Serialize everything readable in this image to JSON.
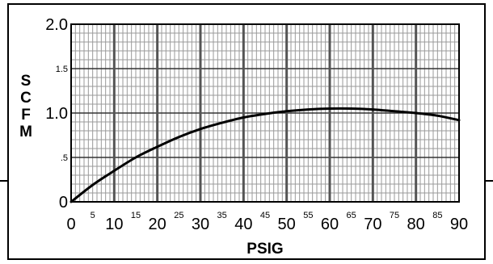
{
  "chart_data": {
    "type": "line",
    "xlabel": "PSIG",
    "ylabel": "SCFM",
    "xlim": [
      0,
      90
    ],
    "ylim": [
      0,
      2.0
    ],
    "x_major_ticks": [
      0,
      10,
      20,
      30,
      40,
      50,
      60,
      70,
      80,
      90
    ],
    "x_minor_ticks": [
      5,
      15,
      25,
      35,
      45,
      55,
      65,
      75,
      85
    ],
    "y_ticks": [
      {
        "value": 0,
        "label": "0",
        "size": "major"
      },
      {
        "value": 0.5,
        "label": ".5",
        "size": "minor"
      },
      {
        "value": 1.0,
        "label": "1.0",
        "size": "major"
      },
      {
        "value": 1.5,
        "label": "1.5",
        "size": "minor"
      },
      {
        "value": 2.0,
        "label": "2.0",
        "size": "major"
      }
    ],
    "grid": true,
    "series": [
      {
        "x": [
          0,
          5,
          10,
          15,
          20,
          25,
          30,
          35,
          40,
          45,
          50,
          55,
          60,
          65,
          70,
          75,
          80,
          85,
          90
        ],
        "y": [
          0,
          0.19,
          0.35,
          0.5,
          0.62,
          0.73,
          0.82,
          0.89,
          0.95,
          0.99,
          1.02,
          1.04,
          1.05,
          1.05,
          1.04,
          1.02,
          1.0,
          0.97,
          0.92
        ]
      }
    ]
  }
}
